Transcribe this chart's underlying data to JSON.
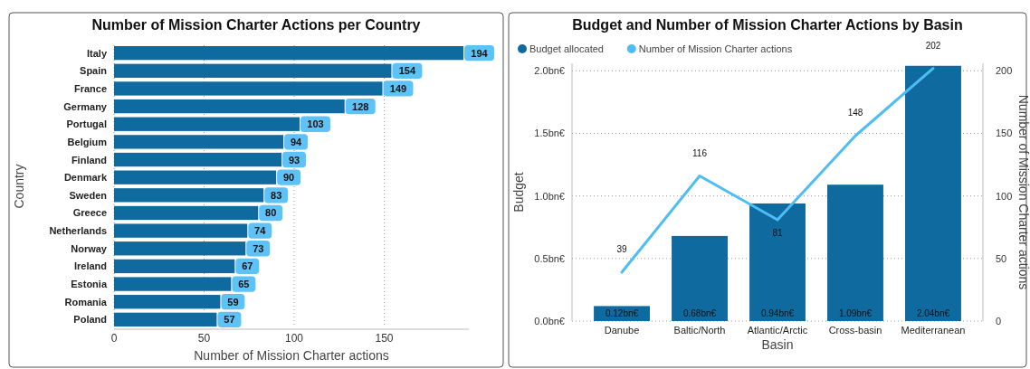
{
  "chart_data": [
    {
      "type": "bar",
      "orientation": "horizontal",
      "title": "Number of Mission Charter Actions per Country",
      "xlabel": "Number of Mission Charter actions",
      "ylabel": "Country",
      "categories": [
        "Italy",
        "Spain",
        "France",
        "Germany",
        "Portugal",
        "Belgium",
        "Finland",
        "Denmark",
        "Sweden",
        "Greece",
        "Netherlands",
        "Norway",
        "Ireland",
        "Estonia",
        "Romania",
        "Poland"
      ],
      "values": [
        194,
        154,
        149,
        128,
        103,
        94,
        93,
        90,
        83,
        80,
        74,
        73,
        67,
        65,
        59,
        57
      ],
      "color": "#0f6aa0",
      "xlim": [
        0,
        197
      ],
      "xticks": [
        0,
        50,
        100,
        150
      ],
      "grid": "x",
      "data_labels": true
    },
    {
      "type": "bar",
      "title": "Budget and Number of Mission Charter Actions by Basin",
      "xlabel": "Basin",
      "ylabel": "Budget",
      "y2label": "Number of Mission Charter actions",
      "categories": [
        "Danube",
        "Baltic/North",
        "Atlantic/Arctic",
        "Cross-basin",
        "Mediterranean"
      ],
      "series": [
        {
          "name": "Budget allocated",
          "color": "#0f6aa0",
          "values": [
            0.12,
            0.68,
            0.94,
            1.09,
            2.04
          ],
          "value_labels": [
            "0.12bn€",
            "0.68bn€",
            "0.94bn€",
            "1.09bn€",
            "2.04bn€"
          ]
        },
        {
          "name": "Number of Mission Charter actions",
          "type": "line",
          "axis": "y2",
          "color": "#4fbdf5",
          "values": [
            39,
            116,
            81,
            148,
            202
          ]
        }
      ],
      "ylim": [
        0,
        2.06
      ],
      "yticks": [
        {
          "value": 0,
          "label": "0.0bn€"
        },
        {
          "value": 0.5,
          "label": "0.5bn€"
        },
        {
          "value": 1,
          "label": "1.0bn€"
        },
        {
          "value": 1.5,
          "label": "1.5bn€"
        },
        {
          "value": 2,
          "label": "2.0bn€"
        }
      ],
      "y2lim": [
        0,
        206
      ],
      "y2ticks": [
        0,
        50,
        100,
        150,
        200
      ],
      "grid": "y",
      "legend": "top left",
      "data_labels": true
    }
  ]
}
